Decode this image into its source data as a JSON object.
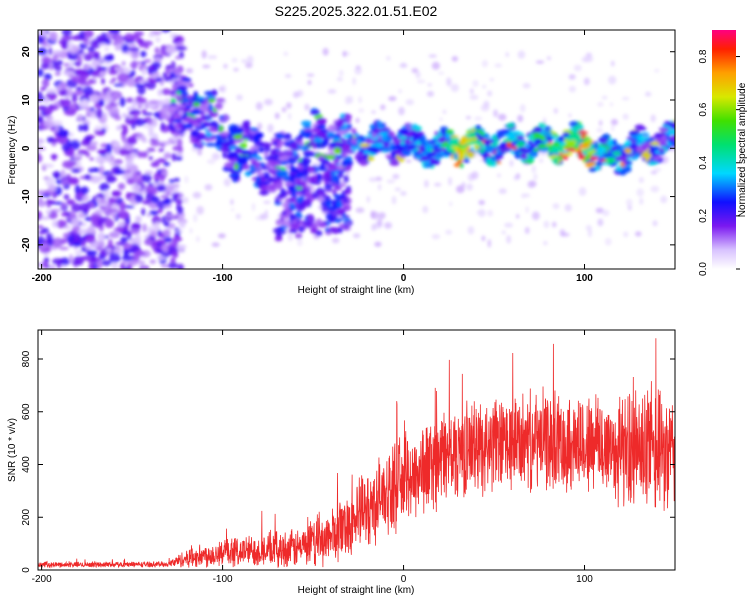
{
  "title": "S225.2025.322.01.51.E02",
  "chart_data": [
    {
      "type": "heatmap",
      "title": "S225.2025.322.01.51.E02",
      "xlabel": "Height of straight line (km)",
      "ylabel": "Frequency (Hz)",
      "xlim": [
        -202,
        150
      ],
      "ylim": [
        -25,
        24.5
      ],
      "xticks": [
        -200,
        -100,
        0,
        100
      ],
      "yticks": [
        20,
        10,
        0,
        -10,
        -20
      ],
      "colorbar": {
        "label": "Normalized spectral amplitude",
        "range": [
          0,
          0.9
        ],
        "ticks": [
          0.8,
          0.6,
          0.4,
          0.2,
          0.0
        ],
        "tick_labels": [
          "0.8",
          "0.6",
          "0.4",
          "0.2",
          "0.0"
        ]
      },
      "ridge": {
        "description_points": [
          {
            "x": -125,
            "freq": 8,
            "amp": 0.25
          },
          {
            "x": -110,
            "freq": 7,
            "amp": 0.3
          },
          {
            "x": -100,
            "freq": 3,
            "amp": 0.3
          },
          {
            "x": -90,
            "freq": -1,
            "amp": 0.3
          },
          {
            "x": -80,
            "freq": -2,
            "amp": 0.3
          },
          {
            "x": -70,
            "freq": -4,
            "amp": 0.25
          },
          {
            "x": -60,
            "freq": -3,
            "amp": 0.3
          },
          {
            "x": -50,
            "freq": 2,
            "amp": 0.3
          },
          {
            "x": -40,
            "freq": 0,
            "amp": 0.3
          },
          {
            "x": -20,
            "freq": 1,
            "amp": 0.35
          },
          {
            "x": 0,
            "freq": 1,
            "amp": 0.35
          },
          {
            "x": 20,
            "freq": 0,
            "amp": 0.4
          },
          {
            "x": 30,
            "freq": 0.5,
            "amp": 0.8
          },
          {
            "x": 50,
            "freq": 1,
            "amp": 0.4
          },
          {
            "x": 70,
            "freq": 1,
            "amp": 0.45
          },
          {
            "x": 100,
            "freq": 1,
            "amp": 0.8
          },
          {
            "x": 110,
            "freq": -2,
            "amp": 0.45
          },
          {
            "x": 130,
            "freq": 0,
            "amp": 0.35
          },
          {
            "x": 150,
            "freq": 2,
            "amp": 0.35
          }
        ]
      }
    },
    {
      "type": "line",
      "xlabel": "Height of straight line (km)",
      "ylabel": "SNR (10 * v/v)",
      "xlim": [
        -202,
        150
      ],
      "ylim": [
        0,
        910
      ],
      "xticks": [
        -200,
        -100,
        0,
        100
      ],
      "yticks": [
        0,
        200,
        400,
        600,
        800
      ],
      "color": "#ee2a2a",
      "series": [
        {
          "name": "SNR",
          "envelope": {
            "x": [
              -202,
              -130,
              -120,
              -100,
              -80,
              -60,
              -50,
              -40,
              -30,
              -20,
              -10,
              0,
              10,
              20,
              30,
              40,
              60,
              80,
              100,
              120,
              130,
              140,
              150
            ],
            "mean": [
              20,
              22,
              45,
              65,
              75,
              80,
              95,
              130,
              180,
              230,
              290,
              340,
              380,
              420,
              450,
              470,
              480,
              490,
              480,
              460,
              450,
              440,
              430
            ],
            "spread": [
              10,
              10,
              35,
              50,
              60,
              70,
              80,
              100,
              120,
              140,
              150,
              160,
              170,
              170,
              170,
              170,
              170,
              180,
              180,
              200,
              220,
              220,
              220
            ]
          }
        }
      ]
    }
  ]
}
